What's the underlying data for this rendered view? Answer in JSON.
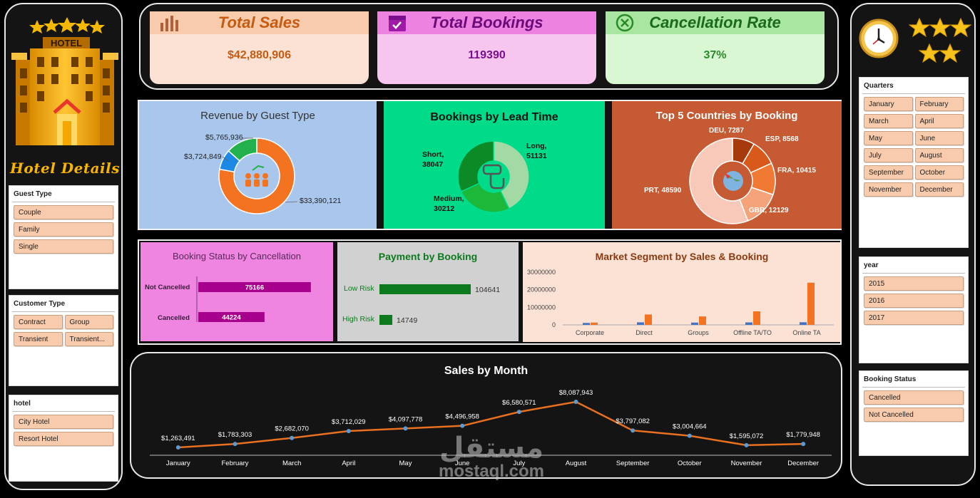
{
  "kpis": {
    "total_sales": {
      "label": "Total Sales",
      "value": "$42,880,906",
      "color": "#c55a11",
      "bg": "#fbe2d5",
      "head_bg": "#f8cbad"
    },
    "total_bookings": {
      "label": "Total Bookings",
      "value": "119390",
      "color": "#7a0e8c",
      "bg": "#f7c6ef",
      "head_bg": "#ee82e0"
    },
    "cancellation_rate": {
      "label": "Cancellation Rate",
      "value": "37%",
      "color": "#2a8a2a",
      "bg": "#d9f7d2",
      "head_bg": "#a8e6a1"
    }
  },
  "left_sidebar": {
    "logo_text": "HOTEL",
    "title": "Hotel Details",
    "guest_type": {
      "title": "Guest Type",
      "items": [
        "Couple",
        "Family",
        "Single"
      ]
    },
    "customer_type": {
      "title": "Customer Type",
      "items": [
        "Contract",
        "Group",
        "Transient",
        "Transient..."
      ]
    },
    "hotel": {
      "title": "hotel",
      "items": [
        "City Hotel",
        "Resort Hotel"
      ]
    }
  },
  "right_sidebar": {
    "quarters": {
      "title": "Quarters",
      "items": [
        "January",
        "February",
        "March",
        "April",
        "May",
        "June",
        "July",
        "August",
        "September",
        "October",
        "November",
        "December"
      ]
    },
    "year": {
      "title": "year",
      "items": [
        "2015",
        "2016",
        "2017"
      ]
    },
    "booking_status": {
      "title": "Booking Status",
      "items": [
        "Cancelled",
        "Not Cancelled"
      ]
    }
  },
  "chart_data": [
    {
      "id": "revenue_by_guest_type",
      "type": "pie",
      "title": "Revenue by Guest Type",
      "slices": [
        {
          "label": "$33,390,121",
          "value": 33390121,
          "color": "#f47321"
        },
        {
          "label": "$3,724,849",
          "value": 3724849,
          "color": "#1e88e5"
        },
        {
          "label": "$5,765,936",
          "value": 5765936,
          "color": "#22b14c"
        }
      ]
    },
    {
      "id": "bookings_by_lead_time",
      "type": "pie",
      "title": "Bookings by Lead Time",
      "slices": [
        {
          "label": "Long,",
          "value_label": "51131",
          "value": 51131,
          "color": "#a3d9a5"
        },
        {
          "label": "Medium,",
          "value_label": "30212",
          "value": 30212,
          "color": "#1cb83a"
        },
        {
          "label": "Short,",
          "value_label": "38047",
          "value": 38047,
          "color": "#0b8a25"
        }
      ]
    },
    {
      "id": "top5_countries",
      "type": "pie",
      "title": "Top 5 Countries by Booking",
      "slices": [
        {
          "label": "DEU, 7287",
          "value": 7287,
          "color": "#a63a0c"
        },
        {
          "label": "ESP, 8568",
          "value": 8568,
          "color": "#d9591b"
        },
        {
          "label": "FRA, 10415",
          "value": 10415,
          "color": "#f07a33"
        },
        {
          "label": "GBR, 12129",
          "value": 12129,
          "color": "#f5a37a"
        },
        {
          "label": "PRT, 48590",
          "value": 48590,
          "color": "#f8c8b8"
        }
      ]
    },
    {
      "id": "booking_status_by_cancellation",
      "type": "bar",
      "title": "Booking Status by Cancellation",
      "categories": [
        "Not Cancelled",
        "Cancelled"
      ],
      "values": [
        75166,
        44224
      ],
      "color": "#a6008c"
    },
    {
      "id": "payment_by_booking",
      "type": "bar",
      "title": "Payment by Booking",
      "categories": [
        "Low Risk",
        "High Risk"
      ],
      "values": [
        104641,
        14749
      ],
      "color": "#0e7a1e"
    },
    {
      "id": "market_segment",
      "type": "bar",
      "title": "Market Segment by Sales & Booking",
      "categories": [
        "Corporate",
        "Direct",
        "Groups",
        "Offline TA/TO",
        "Online TA"
      ],
      "series": [
        {
          "values": [
            1100000,
            1450000,
            1300000,
            1400000,
            1500000
          ],
          "color": "#4472c4"
        },
        {
          "values": [
            1300000,
            5900000,
            4800000,
            7700000,
            24000000
          ],
          "color": "#f47321"
        }
      ],
      "y_ticks": [
        "30000000",
        "20000000",
        "10000000",
        "0"
      ],
      "ylim": [
        0,
        30000000
      ]
    },
    {
      "id": "sales_by_month",
      "type": "line",
      "title": "Sales by Month",
      "categories": [
        "January",
        "February",
        "March",
        "April",
        "May",
        "June",
        "July",
        "August",
        "September",
        "October",
        "November",
        "December"
      ],
      "values": [
        1263491,
        1783303,
        2682070,
        3712029,
        4097778,
        4496958,
        6580571,
        8087943,
        3797082,
        3004664,
        1595072,
        1779948
      ],
      "labels": [
        "$1,263,491",
        "$1,783,303",
        "$2,682,070",
        "$3,712,029",
        "$4,097,778",
        "$4,496,958",
        "$6,580,571",
        "$8,087,943",
        "$3,797,082",
        "$3,004,664",
        "$1,595,072",
        "$1,779,948"
      ],
      "line_color": "#e8701f",
      "marker_color": "#5b9bd5"
    }
  ],
  "watermark": {
    "arabic": "مستقل",
    "latin": "mostaql.com"
  }
}
